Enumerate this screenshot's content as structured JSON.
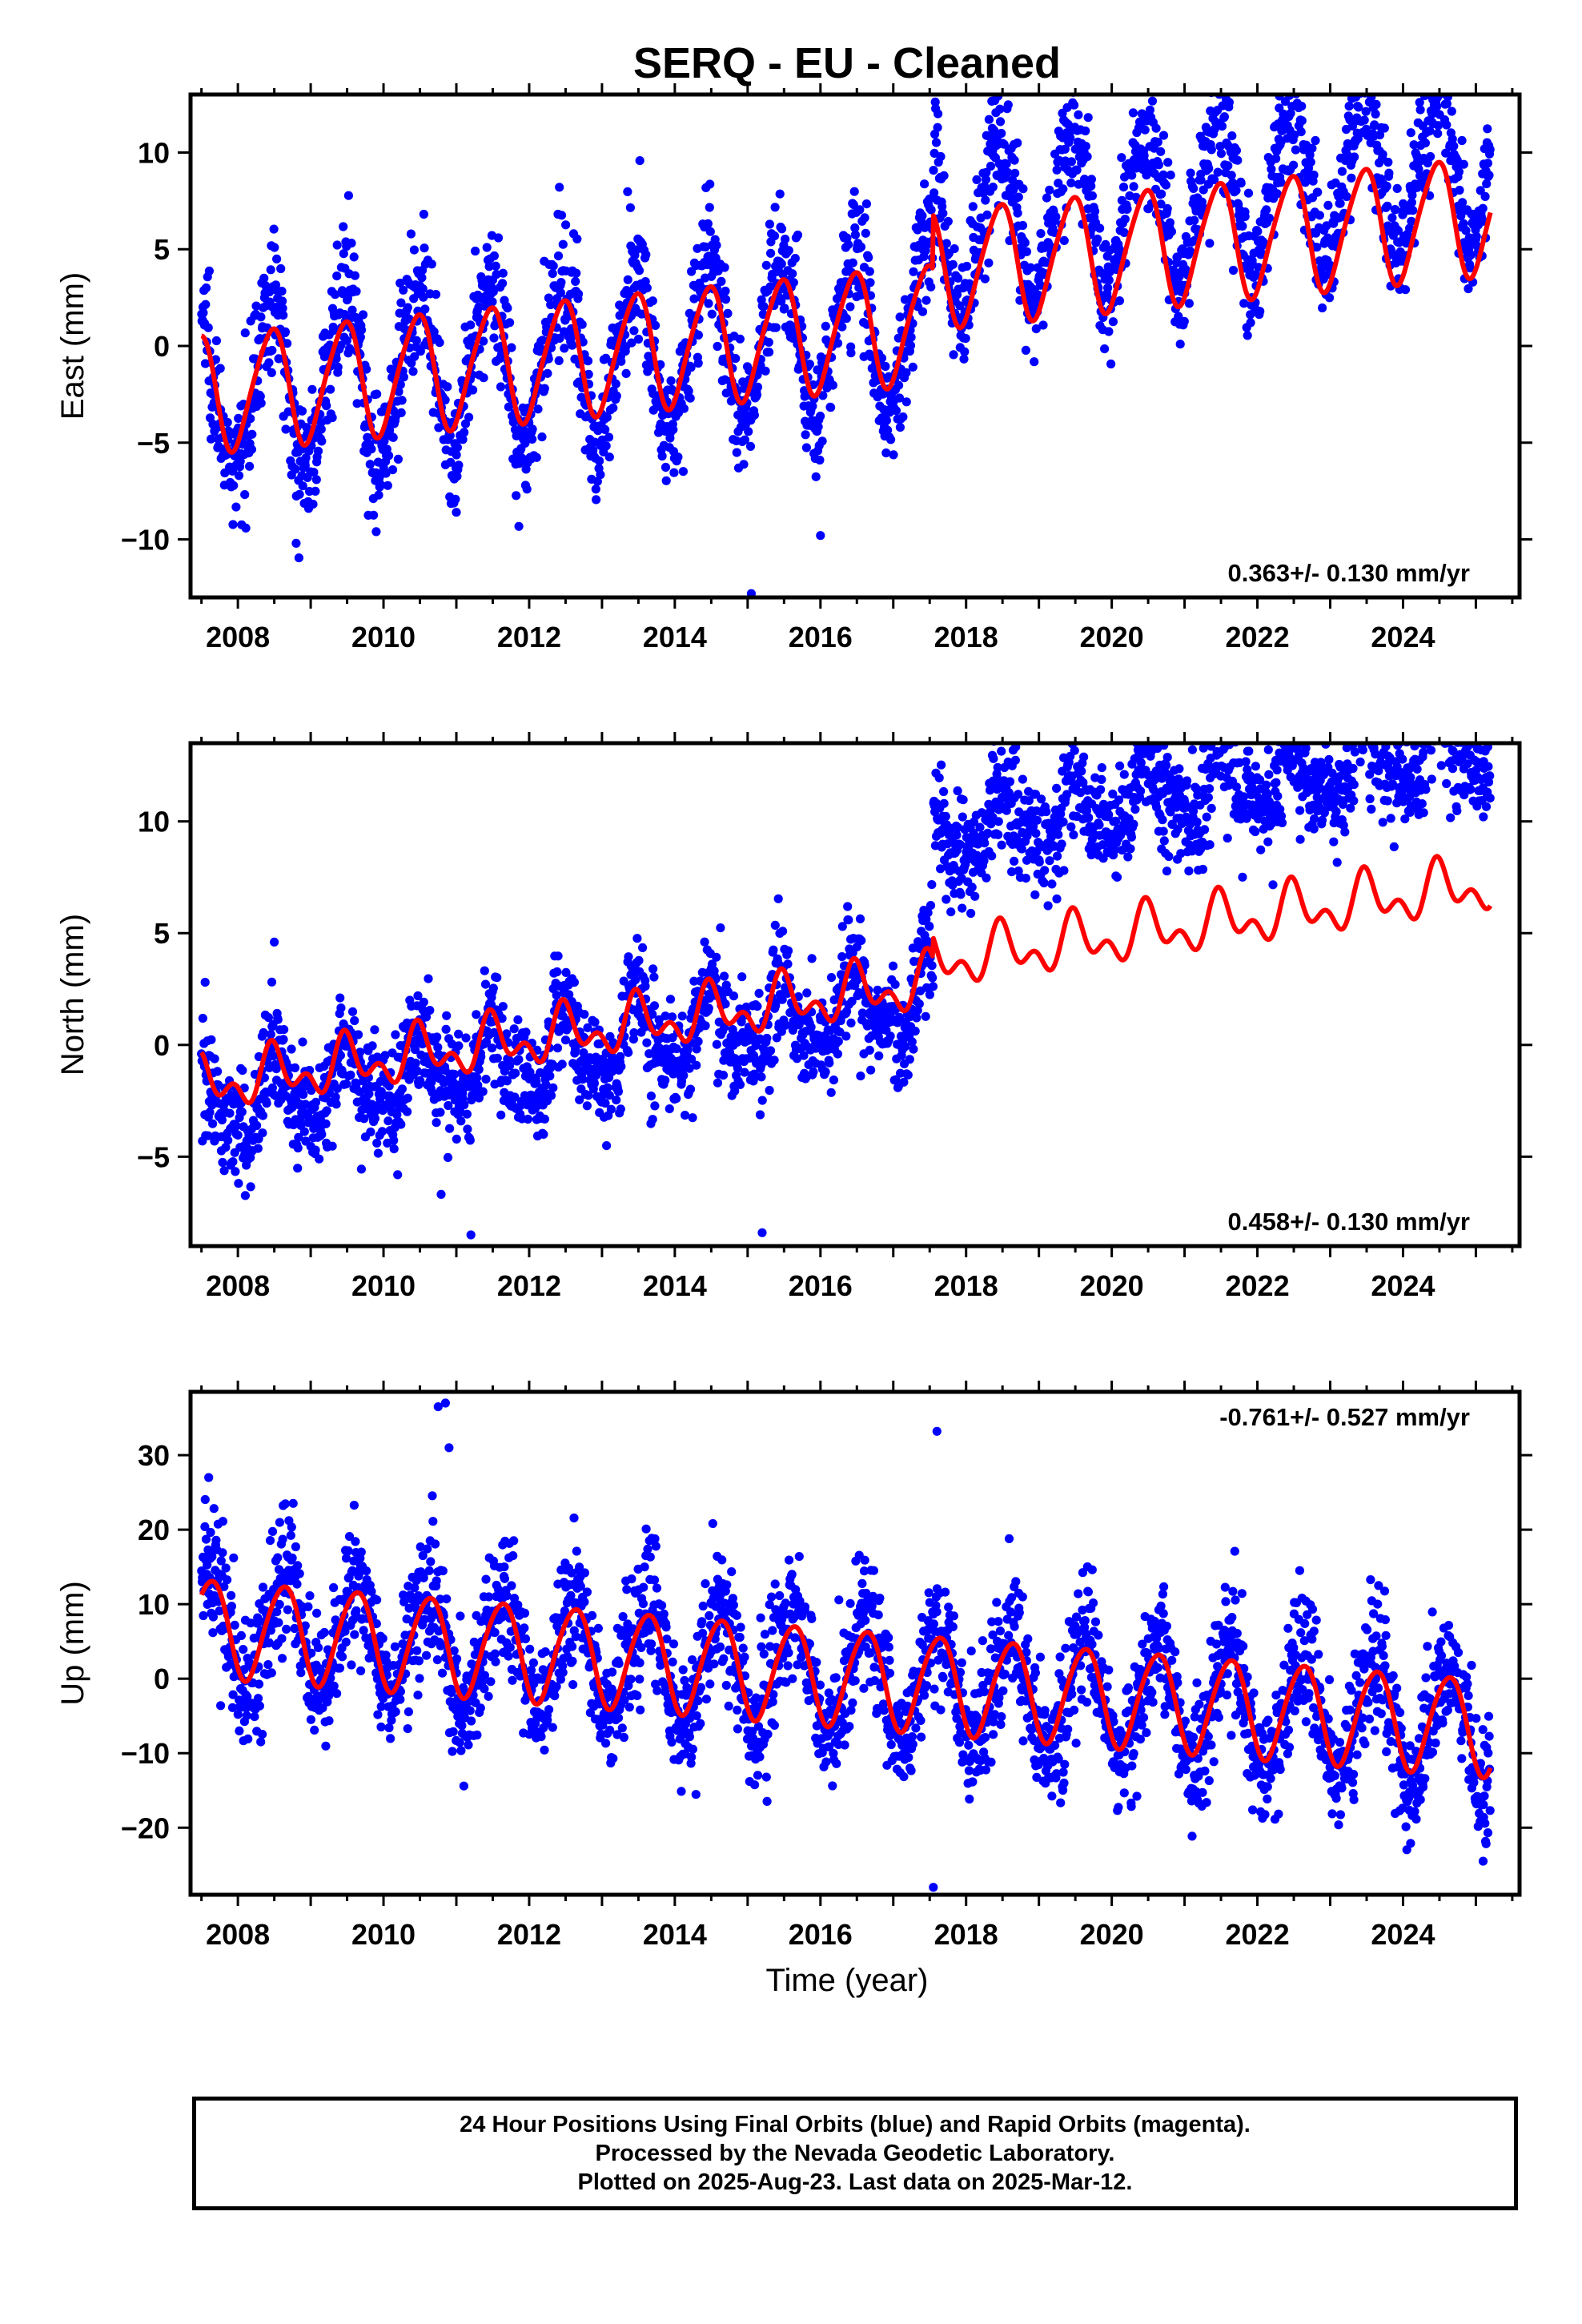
{
  "title": "SERQ  - EU - Cleaned",
  "x_axis_label": "Time (year)",
  "footer": {
    "line1": "24 Hour Positions Using Final Orbits (blue) and Rapid Orbits (magenta).",
    "line2": "Processed by the Nevada Geodetic Laboratory.",
    "line3": "Plotted on 2025-Aug-23. Last data on 2025-Mar-12."
  },
  "colors": {
    "data": "#0000ff",
    "model": "#ff0000",
    "frame": "#000000"
  },
  "chart_data": [
    {
      "type": "scatter",
      "name": "east",
      "ylabel": "East (mm)",
      "xlim": [
        2007.35,
        2025.6
      ],
      "ylim": [
        -13,
        13
      ],
      "xticks": [
        2008,
        2010,
        2012,
        2014,
        2016,
        2018,
        2020,
        2022,
        2024
      ],
      "xtick_labels": [
        "2008",
        "2010",
        "2012",
        "2014",
        "2016",
        "2018",
        "2020",
        "2022",
        "2024"
      ],
      "yticks": [
        -10,
        -5,
        0,
        5,
        10
      ],
      "ytick_labels": [
        "−10",
        "−5",
        "0",
        "5",
        "10"
      ],
      "rate_label": "0.363+/- 0.130 mm/yr",
      "rate_position": "bottom-right",
      "data_span": [
        2007.5,
        2025.2
      ],
      "model_fit": {
        "base": -2.45,
        "trend_mm_per_yr": 0.363,
        "offsets": [
          {
            "year": 2017.55,
            "mm": 2.8
          }
        ],
        "annual_amplitude": 3.0,
        "annual_peak_phase": 0.45,
        "semiannual_amplitude": 0.4,
        "semiannual_phase": 0.6
      },
      "observed": {
        "points_per_year": 160,
        "scatter_sd": 1.6,
        "extra_annual_amplitude": 1.2,
        "jumps": [
          {
            "year": 2017.55,
            "mm": 2.0
          }
        ],
        "extra_trend_after": 0.12,
        "outliers": [
          [
            2015.05,
            -12.8
          ],
          [
            2008.8,
            -10.2
          ],
          [
            2009.9,
            -9.6
          ],
          [
            2022.3,
            12.3
          ],
          [
            2024.4,
            12.0
          ],
          [
            2016.0,
            -9.8
          ],
          [
            2011.0,
            -8.6
          ]
        ]
      }
    },
    {
      "type": "scatter",
      "name": "north",
      "ylabel": "North (mm)",
      "xlim": [
        2007.35,
        2025.6
      ],
      "ylim": [
        -9,
        13.5
      ],
      "xticks": [
        2008,
        2010,
        2012,
        2014,
        2016,
        2018,
        2020,
        2022,
        2024
      ],
      "xtick_labels": [
        "2008",
        "2010",
        "2012",
        "2014",
        "2016",
        "2018",
        "2020",
        "2022",
        "2024"
      ],
      "yticks": [
        -5,
        0,
        5,
        10
      ],
      "ytick_labels": [
        "−5",
        "0",
        "5",
        "10"
      ],
      "rate_label": "0.458+/- 0.130 mm/yr",
      "rate_position": "bottom-right",
      "data_span": [
        2007.5,
        2025.2
      ],
      "model_fit": {
        "base": -1.8,
        "trend_mm_per_yr": 0.458,
        "offsets": [
          {
            "year": 2017.55,
            "mm": 0.9
          }
        ],
        "annual_amplitude": 0.9,
        "annual_peak_phase": 0.5,
        "semiannual_amplitude": 0.7,
        "semiannual_phase": 0.45
      },
      "observed": {
        "points_per_year": 160,
        "scatter_sd": 1.2,
        "extra_annual_amplitude": 0.6,
        "jumps": [
          {
            "year": 2017.55,
            "mm": 6.5
          }
        ],
        "extra_trend_after": 0.1,
        "base_shift": -0.8,
        "outliers": [
          [
            2007.55,
            2.8
          ],
          [
            2008.5,
            4.6
          ],
          [
            2011.2,
            -8.5
          ],
          [
            2015.2,
            -8.4
          ],
          [
            2023.45,
            13.2
          ],
          [
            2023.6,
            13.3
          ],
          [
            2020.2,
            11.4
          ]
        ]
      }
    },
    {
      "type": "scatter",
      "name": "up",
      "ylabel": "Up (mm)",
      "xlim": [
        2007.35,
        2025.6
      ],
      "ylim": [
        -29,
        38.5
      ],
      "xticks": [
        2008,
        2010,
        2012,
        2014,
        2016,
        2018,
        2020,
        2022,
        2024
      ],
      "xtick_labels": [
        "2008",
        "2010",
        "2012",
        "2014",
        "2016",
        "2018",
        "2020",
        "2022",
        "2024"
      ],
      "yticks": [
        -20,
        -10,
        0,
        10,
        20,
        30
      ],
      "ytick_labels": [
        "−20",
        "−10",
        "0",
        "10",
        "20",
        "30"
      ],
      "rate_label": "-0.761+/- 0.527 mm/yr",
      "rate_position": "top-right",
      "data_span": [
        2007.5,
        2025.2
      ],
      "model_fit": {
        "base": 7.0,
        "trend_mm_per_yr": -0.761,
        "offsets": [],
        "annual_amplitude": 6.5,
        "annual_peak_phase": 0.62,
        "semiannual_amplitude": 0.6,
        "semiannual_phase": 0.3
      },
      "observed": {
        "points_per_year": 160,
        "scatter_sd": 4.2,
        "extra_annual_amplitude": 1.5,
        "jumps": [],
        "extra_trend_after": 0,
        "outliers": [
          [
            2007.6,
            27.0
          ],
          [
            2010.75,
            36.5
          ],
          [
            2010.85,
            37.0
          ],
          [
            2010.9,
            31.0
          ],
          [
            2017.6,
            33.2
          ],
          [
            2017.55,
            -28.0
          ],
          [
            2025.1,
            -24.5
          ]
        ]
      }
    }
  ]
}
